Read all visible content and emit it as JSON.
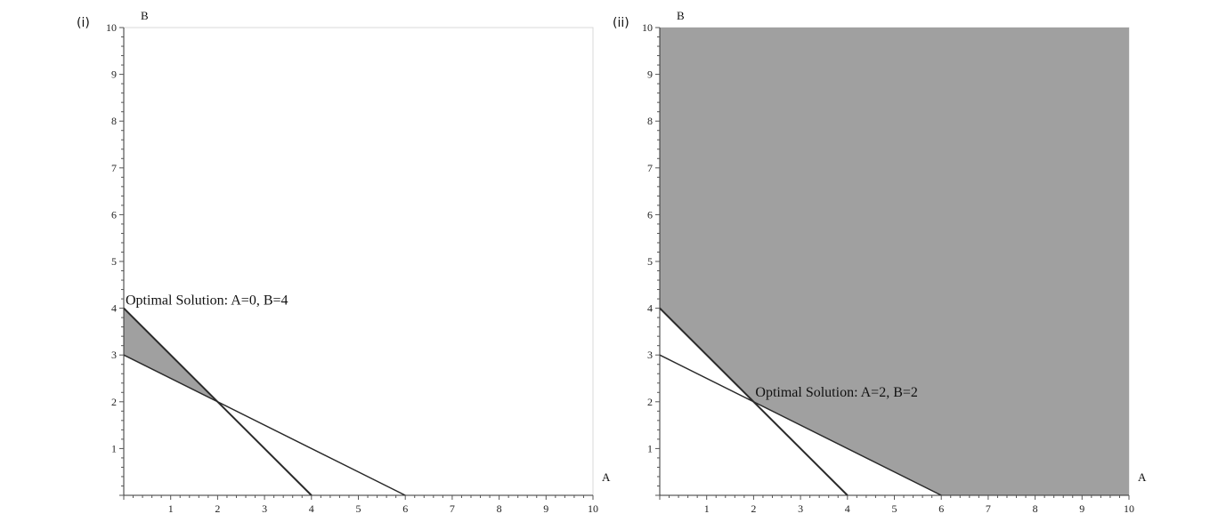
{
  "colors": {
    "feasible_fill": "#a0a0a0",
    "line": "#2a2a2a",
    "background": "#ffffff"
  },
  "chart_data": [
    {
      "type": "area",
      "panel_label": "(i)",
      "xlabel": "A",
      "ylabel": "B",
      "xlim": [
        0,
        10
      ],
      "ylim": [
        0,
        10
      ],
      "x_ticks": [
        1,
        2,
        3,
        4,
        5,
        6,
        7,
        8,
        9,
        10
      ],
      "y_ticks": [
        1,
        2,
        3,
        4,
        5,
        6,
        7,
        8,
        9,
        10
      ],
      "lines": [
        {
          "points": [
            [
              0,
              4
            ],
            [
              4,
              0
            ]
          ]
        },
        {
          "points": [
            [
              0,
              3
            ],
            [
              6,
              0
            ]
          ]
        }
      ],
      "feasible_region": [
        [
          0,
          4
        ],
        [
          2,
          2
        ],
        [
          0,
          3
        ]
      ],
      "optimal_point": [
        0,
        4
      ],
      "annotation": "Optimal Solution: A=0, B=4",
      "annotation_anchor": [
        0,
        4
      ]
    },
    {
      "type": "area",
      "panel_label": "(ii)",
      "xlabel": "A",
      "ylabel": "B",
      "xlim": [
        0,
        10
      ],
      "ylim": [
        0,
        10
      ],
      "x_ticks": [
        1,
        2,
        3,
        4,
        5,
        6,
        7,
        8,
        9,
        10
      ],
      "y_ticks": [
        1,
        2,
        3,
        4,
        5,
        6,
        7,
        8,
        9,
        10
      ],
      "lines": [
        {
          "points": [
            [
              0,
              4
            ],
            [
              4,
              0
            ]
          ]
        },
        {
          "points": [
            [
              0,
              3
            ],
            [
              6,
              0
            ]
          ]
        }
      ],
      "feasible_region": [
        [
          0,
          10
        ],
        [
          0,
          4
        ],
        [
          2,
          2
        ],
        [
          6,
          0
        ],
        [
          10,
          0
        ],
        [
          10,
          10
        ]
      ],
      "optimal_point": [
        2,
        2
      ],
      "annotation": "Optimal Solution: A=2, B=2",
      "annotation_anchor": [
        2,
        2
      ]
    }
  ]
}
